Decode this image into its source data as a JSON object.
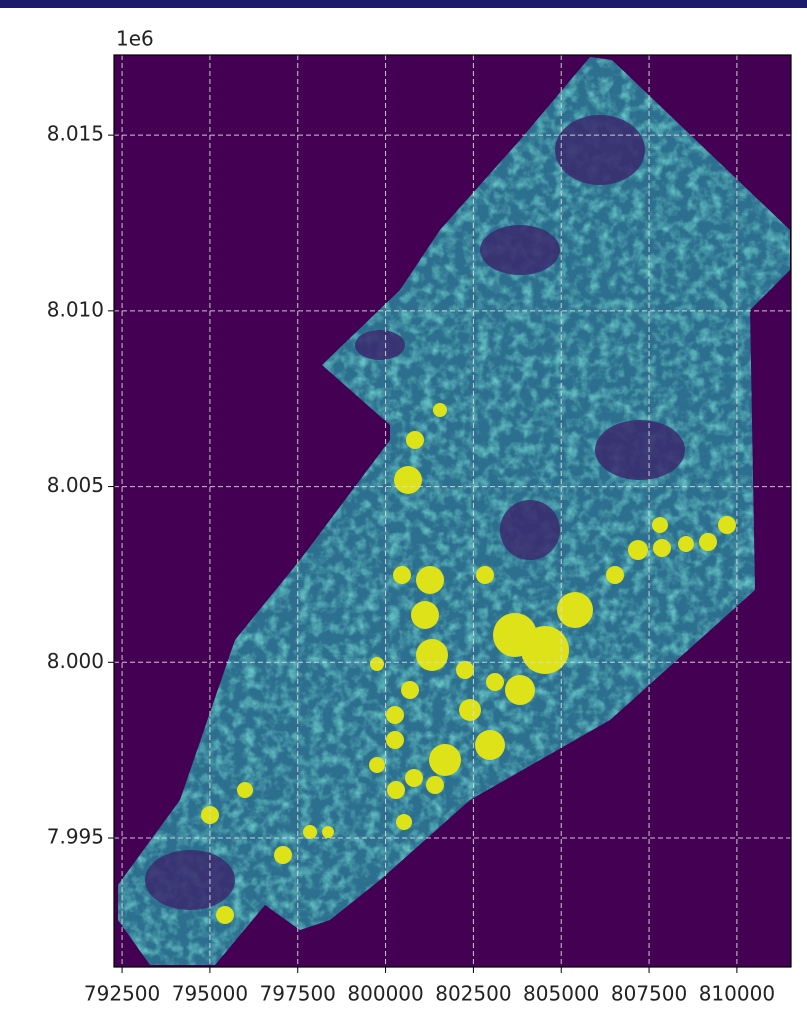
{
  "chart_data": {
    "type": "raster",
    "y_offset_label": "1e6",
    "xlim": [
      792270,
      811540
    ],
    "ylim": [
      7.99133,
      8.01728
    ],
    "xticks": [
      792500,
      795000,
      797500,
      800000,
      802500,
      805000,
      807500,
      810000
    ],
    "yticks": [
      7.995,
      8.0,
      8.005,
      8.01,
      8.015
    ],
    "grid": true
  }
}
